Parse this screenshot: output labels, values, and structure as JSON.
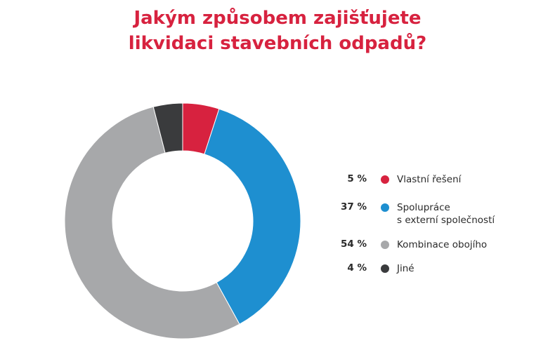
{
  "chart_data": {
    "type": "donut",
    "title": "Jakým způsobem zajišťujete\nlikvidaci stavebních odpadů?",
    "categories": [
      "Vlastní řešení",
      "Spolupráce\ns externí společností",
      "Kombinace obojího",
      "Jiné"
    ],
    "values": [
      5,
      37,
      54,
      4
    ],
    "value_labels": [
      "5 %",
      "37 %",
      "54 %",
      "4 %"
    ],
    "colors": [
      "#d7223f",
      "#1e8fd0",
      "#a7a8aa",
      "#3a3b3d"
    ]
  }
}
